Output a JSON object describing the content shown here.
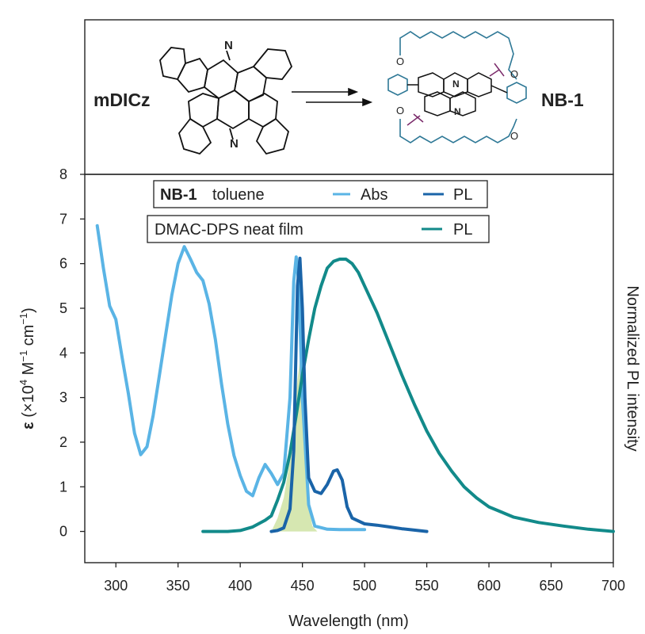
{
  "scheme": {
    "reactant": "mDICz",
    "product": "NB-1"
  },
  "legend": {
    "row1_name": "NB-1",
    "row1_solvent": "toluene",
    "row1_abs": "Abs",
    "row1_pl": "PL",
    "row2_name": "DMAC-DPS neat film",
    "row2_pl": "PL"
  },
  "chart_data": {
    "type": "line",
    "xlabel": "Wavelength (nm)",
    "ylabel": "ε (×10⁴ M⁻¹ cm⁻¹)",
    "ylabel_parts": {
      "eps": "ε",
      "open": " (×10",
      "exp4": "4",
      "m": " M",
      "neg1a": "−1",
      "cm": " cm",
      "neg1b": "−1",
      "close": ")"
    },
    "y2label": "Normalized PL intensity",
    "xlim": [
      275,
      700
    ],
    "ylim": [
      -0.7,
      8
    ],
    "xticks": [
      300,
      350,
      400,
      450,
      500,
      550,
      600,
      650,
      700
    ],
    "yticks": [
      0,
      1,
      2,
      3,
      4,
      5,
      6,
      7,
      8
    ],
    "colors": {
      "abs": "#5ab4e5",
      "pl_nb1": "#1a64a8",
      "pl_dmac": "#128a8a",
      "overlap": "#cfe3a3"
    },
    "series": [
      {
        "name": "NB-1 toluene Abs",
        "color": "#5ab4e5",
        "points": [
          [
            285,
            6.85
          ],
          [
            290,
            5.9
          ],
          [
            295,
            5.05
          ],
          [
            300,
            4.75
          ],
          [
            305,
            3.9
          ],
          [
            310,
            3.1
          ],
          [
            315,
            2.2
          ],
          [
            320,
            1.72
          ],
          [
            325,
            1.9
          ],
          [
            330,
            2.6
          ],
          [
            335,
            3.5
          ],
          [
            340,
            4.4
          ],
          [
            345,
            5.3
          ],
          [
            350,
            6.0
          ],
          [
            355,
            6.38
          ],
          [
            360,
            6.1
          ],
          [
            365,
            5.8
          ],
          [
            370,
            5.62
          ],
          [
            375,
            5.1
          ],
          [
            380,
            4.3
          ],
          [
            385,
            3.3
          ],
          [
            390,
            2.4
          ],
          [
            395,
            1.7
          ],
          [
            400,
            1.25
          ],
          [
            405,
            0.9
          ],
          [
            410,
            0.8
          ],
          [
            415,
            1.2
          ],
          [
            420,
            1.5
          ],
          [
            425,
            1.3
          ],
          [
            430,
            1.05
          ],
          [
            435,
            1.3
          ],
          [
            440,
            3.0
          ],
          [
            443,
            5.6
          ],
          [
            445,
            6.15
          ],
          [
            447,
            5.6
          ],
          [
            450,
            3.0
          ],
          [
            455,
            0.6
          ],
          [
            460,
            0.12
          ],
          [
            470,
            0.05
          ],
          [
            480,
            0.04
          ],
          [
            490,
            0.04
          ],
          [
            500,
            0.04
          ]
        ]
      },
      {
        "name": "NB-1 toluene PL",
        "color": "#1a64a8",
        "points": [
          [
            425,
            0.0
          ],
          [
            430,
            0.02
          ],
          [
            435,
            0.08
          ],
          [
            440,
            0.5
          ],
          [
            443,
            1.8
          ],
          [
            446,
            5.5
          ],
          [
            448,
            6.12
          ],
          [
            450,
            5.0
          ],
          [
            452,
            3.0
          ],
          [
            455,
            1.2
          ],
          [
            460,
            0.9
          ],
          [
            465,
            0.85
          ],
          [
            470,
            1.05
          ],
          [
            475,
            1.35
          ],
          [
            478,
            1.38
          ],
          [
            482,
            1.15
          ],
          [
            486,
            0.55
          ],
          [
            490,
            0.3
          ],
          [
            500,
            0.17
          ],
          [
            510,
            0.14
          ],
          [
            520,
            0.1
          ],
          [
            530,
            0.06
          ],
          [
            540,
            0.03
          ],
          [
            550,
            0.0
          ]
        ]
      },
      {
        "name": "DMAC-DPS neat film PL",
        "color": "#128a8a",
        "points": [
          [
            370,
            0.0
          ],
          [
            390,
            0.0
          ],
          [
            400,
            0.02
          ],
          [
            410,
            0.1
          ],
          [
            420,
            0.25
          ],
          [
            425,
            0.35
          ],
          [
            430,
            0.7
          ],
          [
            435,
            1.1
          ],
          [
            440,
            1.75
          ],
          [
            445,
            2.6
          ],
          [
            450,
            3.5
          ],
          [
            455,
            4.3
          ],
          [
            460,
            5.0
          ],
          [
            465,
            5.5
          ],
          [
            470,
            5.9
          ],
          [
            475,
            6.05
          ],
          [
            480,
            6.1
          ],
          [
            485,
            6.1
          ],
          [
            490,
            6.0
          ],
          [
            495,
            5.8
          ],
          [
            500,
            5.5
          ],
          [
            510,
            4.9
          ],
          [
            520,
            4.2
          ],
          [
            530,
            3.5
          ],
          [
            540,
            2.85
          ],
          [
            550,
            2.25
          ],
          [
            560,
            1.75
          ],
          [
            570,
            1.35
          ],
          [
            580,
            1.0
          ],
          [
            590,
            0.75
          ],
          [
            600,
            0.55
          ],
          [
            620,
            0.32
          ],
          [
            640,
            0.2
          ],
          [
            660,
            0.12
          ],
          [
            680,
            0.05
          ],
          [
            700,
            0.0
          ]
        ]
      }
    ],
    "overlap_region": [
      [
        425,
        0.0
      ],
      [
        430,
        0.3
      ],
      [
        435,
        0.75
      ],
      [
        440,
        1.6
      ],
      [
        443,
        2.4
      ],
      [
        446,
        3.4
      ],
      [
        449,
        4.05
      ],
      [
        451,
        3.6
      ],
      [
        453,
        2.2
      ],
      [
        455,
        0.6
      ],
      [
        458,
        0.12
      ],
      [
        462,
        0.0
      ]
    ]
  }
}
